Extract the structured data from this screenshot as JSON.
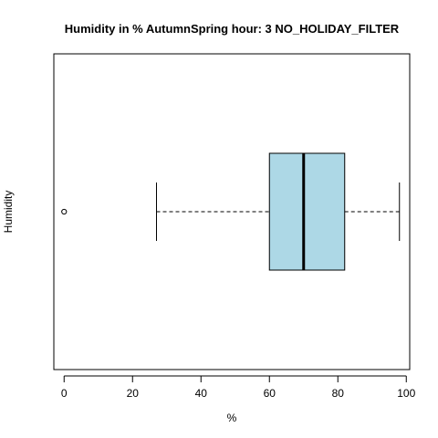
{
  "chart_data": {
    "type": "boxplot",
    "orientation": "horizontal",
    "title": "Humidity in % AutumnSpring hour: 3 NO_HOLIDAY_FILTER",
    "xlabel": "%",
    "ylabel": "Humidity",
    "xlim": [
      -3,
      101
    ],
    "xticks": [
      0,
      20,
      40,
      60,
      80,
      100
    ],
    "grid": false,
    "series": [
      {
        "whisker_low": 27,
        "q1": 60,
        "median": 70,
        "q3": 82,
        "whisker_high": 98,
        "outliers": [
          0
        ]
      }
    ],
    "colors": {
      "box_fill": "#add8e6",
      "stroke": "#000000"
    }
  }
}
